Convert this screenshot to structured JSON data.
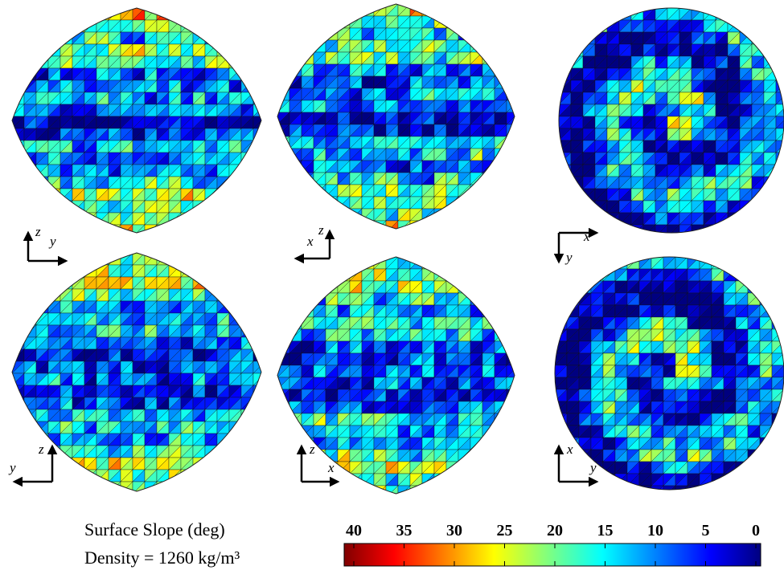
{
  "panels": [
    {
      "axes": [
        "z",
        "y"
      ]
    },
    {
      "axes": [
        "z",
        "x"
      ]
    },
    {
      "axes": [
        "y",
        "x"
      ]
    },
    {
      "axes": [
        "z",
        "y"
      ]
    },
    {
      "axes": [
        "z",
        "x"
      ]
    },
    {
      "axes": [
        "x",
        "y"
      ]
    }
  ],
  "colorbar": {
    "label": "Surface Slope (deg)",
    "note": "Density = 1260 kg/m³",
    "xlim": [
      40,
      0
    ],
    "xticks": [
      40,
      35,
      30,
      25,
      20,
      15,
      10,
      5,
      0
    ]
  }
}
